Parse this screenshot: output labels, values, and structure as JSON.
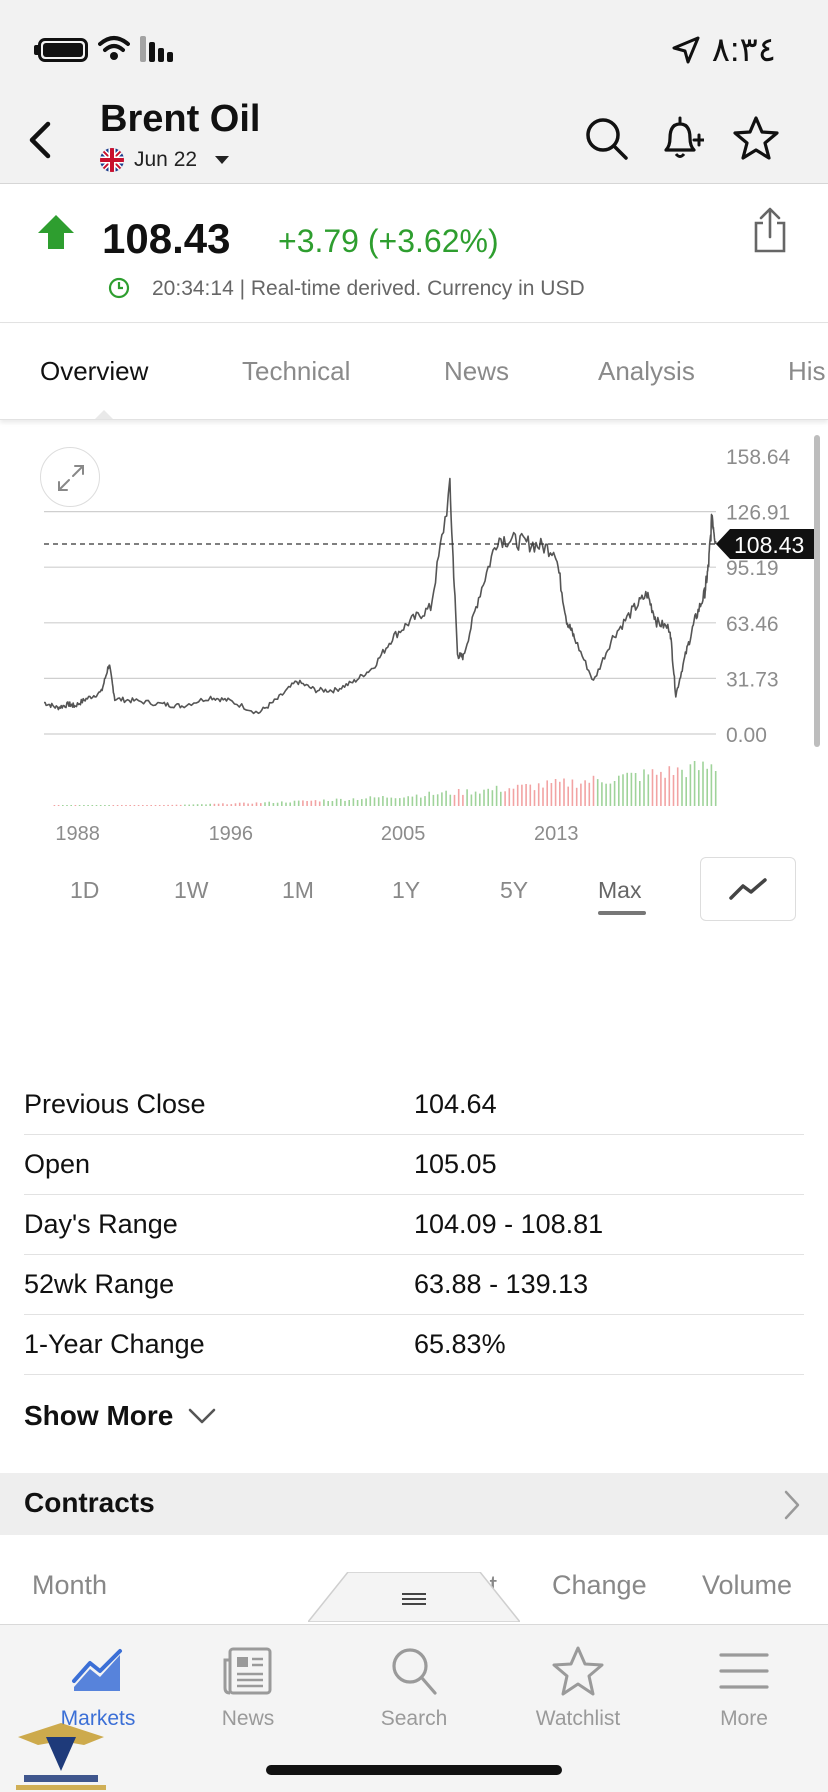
{
  "status_bar": {
    "time": "٨:٣٤"
  },
  "header": {
    "title": "Brent Oil",
    "contract_month": "Jun 22"
  },
  "quote": {
    "price": "108.43",
    "change": "+3.79 (+3.62%)",
    "timestamp_meta": "20:34:14 | Real-time derived. Currency in USD",
    "direction": "up",
    "up_color": "#2e9e2f"
  },
  "tabs": [
    "Overview",
    "Technical",
    "News",
    "Analysis",
    "His"
  ],
  "chart_data": {
    "type": "line",
    "title": "",
    "y_ticks": [
      "158.64",
      "126.91",
      "95.19",
      "63.46",
      "31.73",
      "0.00"
    ],
    "x_ticks": [
      "1988",
      "1996",
      "2005",
      "2013"
    ],
    "ylim": [
      0,
      158.64
    ],
    "xlim": [
      1987.3,
      2022.4
    ],
    "current_value_label": "108.43",
    "current_value": 108.43,
    "series": [
      {
        "x": [
          1987.3,
          1988.0,
          1988.6,
          1988.9,
          1989.5,
          1990.3,
          1990.7,
          1991.0,
          1992.0,
          1993.5,
          1994.5,
          1996.0,
          1997.0,
          1998.5,
          1999.5,
          2000.5,
          2001.5,
          2002.5,
          2003.5,
          2004.5,
          2005.5,
          2006.5,
          2007.5,
          2008.5,
          2008.9,
          2009.2,
          2010.0,
          2011.0,
          2012.0,
          2013.0,
          2014.0,
          2014.6,
          2015.0,
          2016.0,
          2017.0,
          2018.0,
          2018.8,
          2019.3,
          2020.0,
          2020.3,
          2020.8,
          2021.3,
          2021.8,
          2022.0,
          2022.2,
          2022.4
        ],
        "values": [
          18,
          15,
          17,
          16,
          20,
          24,
          40,
          20,
          19,
          17,
          16,
          21,
          19,
          12,
          20,
          30,
          25,
          25,
          30,
          38,
          55,
          65,
          72,
          140,
          45,
          44,
          78,
          112,
          110,
          108,
          105,
          65,
          55,
          30,
          55,
          70,
          80,
          64,
          60,
          22,
          45,
          65,
          80,
          95,
          125,
          108.43
        ]
      }
    ],
    "volume_colors": {
      "up": "#9fd39a",
      "down": "#f2a3a3"
    }
  },
  "ranges": {
    "options": [
      "1D",
      "1W",
      "1M",
      "1Y",
      "5Y",
      "Max"
    ],
    "active": "Max"
  },
  "stats": [
    {
      "label": "Previous Close",
      "value": "104.64"
    },
    {
      "label": "Open",
      "value": "105.05"
    },
    {
      "label": "Day's Range",
      "value": "104.09 - 108.81"
    },
    {
      "label": "52wk Range",
      "value": "63.88 - 139.13"
    },
    {
      "label": "1-Year Change",
      "value": "65.83%"
    }
  ],
  "show_more": "Show More",
  "contracts": {
    "label": "Contracts"
  },
  "contract_columns": [
    "Month",
    "st",
    "Change",
    "Volume"
  ],
  "bottom_nav": [
    {
      "label": "Markets",
      "icon": "markets-chart-icon",
      "active": true
    },
    {
      "label": "News",
      "icon": "newspaper-icon",
      "active": false
    },
    {
      "label": "Search",
      "icon": "search-icon",
      "active": false
    },
    {
      "label": "Watchlist",
      "icon": "star-icon",
      "active": false
    },
    {
      "label": "More",
      "icon": "menu-icon",
      "active": false
    }
  ],
  "colors": {
    "accent": "#3b6fd6",
    "positive": "#2e9e2f",
    "chart_line": "#555555",
    "price_tag": "#111111"
  }
}
